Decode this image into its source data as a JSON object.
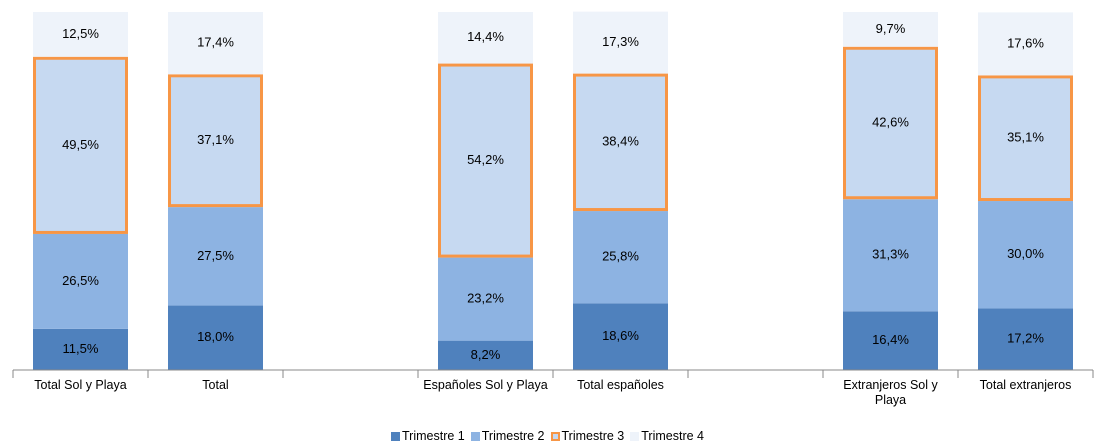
{
  "chart_data": {
    "type": "stacked_bar",
    "categories": [
      "Total Sol y Playa",
      "Total",
      null,
      "Españoles Sol y Playa",
      "Total españoles",
      null,
      "Extranjeros Sol y Playa",
      "Total extranjeros"
    ],
    "series": [
      {
        "name": "Trimestre 1",
        "color": "#4f81bd",
        "values": [
          11.5,
          18.0,
          null,
          8.2,
          18.6,
          null,
          16.4,
          17.2
        ],
        "value_labels": [
          "11,5%",
          "18,0%",
          null,
          "8,2%",
          "18,6%",
          null,
          "16,4%",
          "17,2%"
        ]
      },
      {
        "name": "Trimestre 2",
        "color": "#8db3e2",
        "values": [
          26.5,
          27.5,
          null,
          23.2,
          25.8,
          null,
          31.3,
          30.0
        ],
        "value_labels": [
          "26,5%",
          "27,5%",
          null,
          "23,2%",
          "25,8%",
          null,
          "31,3%",
          "30,0%"
        ]
      },
      {
        "name": "Trimestre 3",
        "color": "#c6d9f1",
        "edge_color": "#f79646",
        "values": [
          49.5,
          37.1,
          null,
          54.2,
          38.4,
          null,
          42.6,
          35.1
        ],
        "value_labels": [
          "49,5%",
          "37,1%",
          null,
          "54,2%",
          "38,4%",
          null,
          "42,6%",
          "35,1%"
        ]
      },
      {
        "name": "Trimestre 4",
        "color": "#eef3fa",
        "values": [
          12.5,
          17.4,
          null,
          14.4,
          17.3,
          null,
          9.7,
          17.6
        ],
        "value_labels": [
          "12,5%",
          "17,4%",
          null,
          "14,4%",
          "17,3%",
          null,
          "9,7%",
          "17,6%"
        ]
      }
    ],
    "ylim": [
      0,
      100
    ],
    "legend": "bottom"
  }
}
